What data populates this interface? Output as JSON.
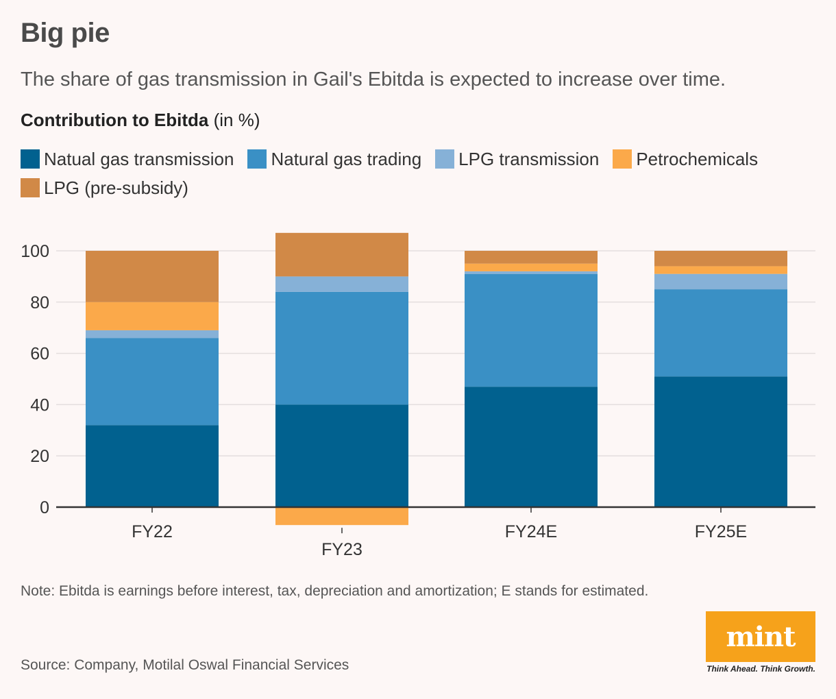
{
  "header": {
    "title": "Big pie",
    "subtitle": "The share of gas transmission in Gail's Ebitda is expected to increase over time.",
    "chart_title_bold": "Contribution to Ebitda",
    "chart_title_unit": "(in %)"
  },
  "legend": [
    {
      "label": "Natual gas transmission",
      "color": "#01618f"
    },
    {
      "label": "Natural gas trading",
      "color": "#3a90c5"
    },
    {
      "label": "LPG transmission",
      "color": "#86b1d7"
    },
    {
      "label": "Petrochemicals",
      "color": "#fba94a"
    },
    {
      "label": "LPG (pre-subsidy)",
      "color": "#d18947"
    }
  ],
  "chart_data": {
    "type": "bar",
    "stacked": true,
    "categories": [
      "FY22",
      "FY23",
      "FY24E",
      "FY25E"
    ],
    "series": [
      {
        "name": "Natual gas transmission",
        "color": "#01618f",
        "values": [
          32,
          40,
          47,
          51
        ]
      },
      {
        "name": "Natural gas trading",
        "color": "#3a90c5",
        "values": [
          34,
          44,
          44,
          34
        ]
      },
      {
        "name": "LPG transmission",
        "color": "#86b1d7",
        "values": [
          3,
          6,
          1,
          6
        ]
      },
      {
        "name": "Petrochemicals",
        "color": "#fba94a",
        "values": [
          11,
          -7,
          3,
          3
        ]
      },
      {
        "name": "LPG (pre-subsidy)",
        "color": "#d18947",
        "values": [
          20,
          17,
          5,
          6
        ]
      }
    ],
    "yticks": [
      "0",
      "20",
      "40",
      "60",
      "80",
      "100"
    ],
    "ylim": [
      -7,
      107
    ],
    "grid": true
  },
  "footer": {
    "note": "Note: Ebitda is earnings before interest, tax, depreciation and amortization; E stands for estimated.",
    "source": "Source: Company, Motilal Oswal Financial Services",
    "logo": "mint",
    "tagline": "Think Ahead. Think Growth."
  }
}
